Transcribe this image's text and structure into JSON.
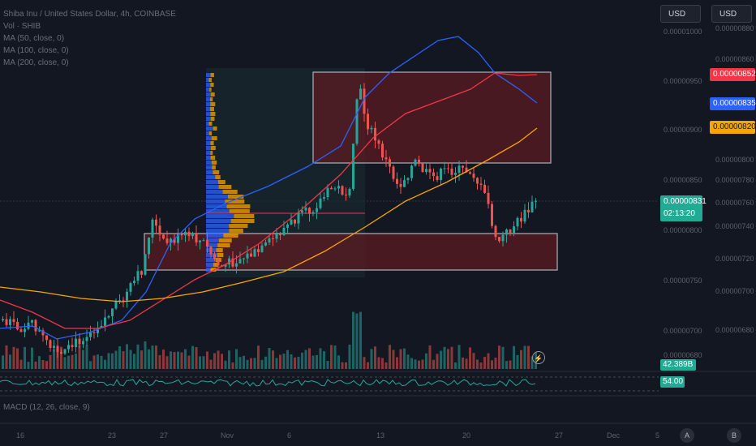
{
  "legend": {
    "title": "Shiba Inu / United States Dollar, 4h, COINBASE",
    "vol": "Vol · SHIB",
    "ma50": "MA (50, close, 0)",
    "ma100": "MA (100, close, 0)",
    "ma200": "MA (200, close, 0)"
  },
  "currency_buttons": [
    "USD",
    "USD"
  ],
  "price_tags": {
    "ma_red": "0.00000852",
    "ma_blue": "0.00000835",
    "ma_orange": "0.00000820",
    "last_price": "0.00000831",
    "countdown": "02:13:20",
    "volume": "42.389B",
    "rsi": "54.00"
  },
  "macd_label": "MACD (12, 26, close, 9)",
  "axis_letters": [
    "A",
    "B"
  ],
  "colors": {
    "background": "#131722",
    "up": "#26a69a",
    "down": "#ef5350",
    "ma_blue": "#2962ff",
    "ma_red": "#f23645",
    "ma_orange": "#f7a600",
    "zone_fill": "#5c1a22",
    "accent_tag_red": "#f23645",
    "accent_tag_blue": "#2962ff",
    "accent_tag_orange": "#f7a600"
  },
  "chart_data": {
    "type": "candlestick",
    "title": "Shiba Inu / United States Dollar, 4h, COINBASE",
    "x_ticks": [
      "16",
      "23",
      "27",
      "Nov",
      "6",
      "13",
      "20",
      "27",
      "Dec",
      "5"
    ],
    "price_ticks_left": [
      "0.00001000",
      "0.00000950",
      "0.00000900",
      "0.00000850",
      "0.00000800",
      "0.00000750",
      "0.00000700",
      "0.00000680"
    ],
    "price_ticks_right": [
      "0.00000880",
      "0.00000860",
      "0.00000800",
      "0.00000780",
      "0.00000760",
      "0.00000740",
      "0.00000720",
      "0.00000700",
      "0.00000680"
    ],
    "series": [
      {
        "name": "MA (50, close, 0)",
        "color": "#2962ff"
      },
      {
        "name": "MA (100, close, 0)",
        "color": "#f23645"
      },
      {
        "name": "MA (200, close, 0)",
        "color": "#f7a600"
      }
    ],
    "last_price": 8.31e-06,
    "zones": [
      "supply",
      "demand"
    ],
    "volume_last": "42.389B",
    "rsi_last": 54.0
  }
}
